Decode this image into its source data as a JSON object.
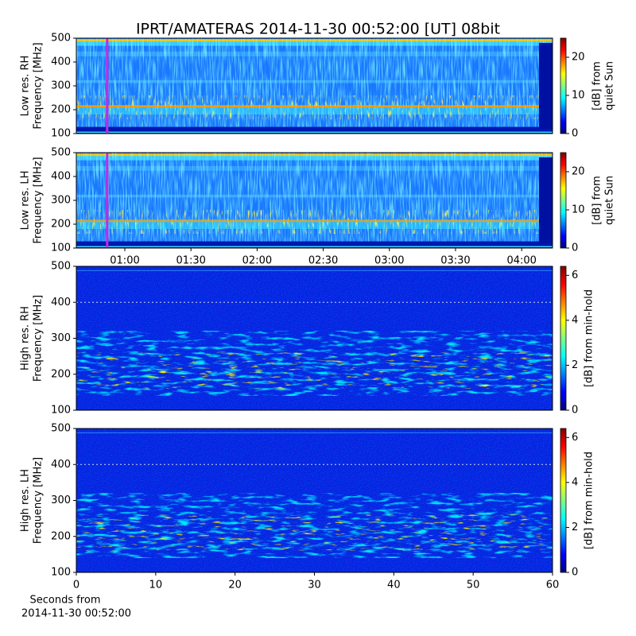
{
  "chart_data": [
    {
      "type": "heatmap",
      "title": "IPRT/AMATERAS 2014-11-30 00:52:00 [UT]   08bit",
      "y_label": [
        "Low res. RH",
        "Frequency [MHz]"
      ],
      "ylim": [
        100,
        500
      ],
      "yticks": [
        100,
        200,
        300,
        400,
        500
      ],
      "xlim": [
        38,
        254
      ],
      "marker_x": 52,
      "marker_color": "#c828e0",
      "colorbar": {
        "label": [
          "[dB] from",
          "quiet Sun"
        ],
        "lim": [
          0,
          25
        ],
        "ticks": [
          0,
          10,
          20
        ],
        "cmap": "jet"
      },
      "style": "low"
    },
    {
      "type": "heatmap",
      "y_label": [
        "Low res. LH",
        "Frequency [MHz]"
      ],
      "ylim": [
        100,
        500
      ],
      "yticks": [
        100,
        200,
        300,
        400,
        500
      ],
      "xlim": [
        38,
        254
      ],
      "xticks": [
        {
          "value": 60,
          "label": "01:00"
        },
        {
          "value": 90,
          "label": "01:30"
        },
        {
          "value": 120,
          "label": "02:00"
        },
        {
          "value": 150,
          "label": "02:30"
        },
        {
          "value": 180,
          "label": "03:00"
        },
        {
          "value": 210,
          "label": "03:30"
        },
        {
          "value": 240,
          "label": "04:00"
        }
      ],
      "marker_x": 52,
      "marker_color": "#c828e0",
      "colorbar": {
        "label": [
          "[dB] from",
          "quiet Sun"
        ],
        "lim": [
          0,
          25
        ],
        "ticks": [
          0,
          10,
          20
        ],
        "cmap": "jet"
      },
      "style": "low"
    },
    {
      "type": "heatmap",
      "y_label": [
        "High res. RH",
        "Frequency [MHz]"
      ],
      "ylim": [
        100,
        500
      ],
      "yticks": [
        100,
        200,
        300,
        400,
        500
      ],
      "xlim": [
        0,
        60
      ],
      "colorbar": {
        "label": [
          "[dB] from min-hold"
        ],
        "lim": [
          0,
          6.4
        ],
        "ticks": [
          0,
          2,
          4,
          6
        ],
        "cmap": "jet"
      },
      "style": "high"
    },
    {
      "type": "heatmap",
      "y_label": [
        "High res. LH",
        "Frequency [MHz]"
      ],
      "ylim": [
        100,
        500
      ],
      "yticks": [
        100,
        200,
        300,
        400,
        500
      ],
      "xlim": [
        0,
        60
      ],
      "xticks": [
        0,
        10,
        20,
        30,
        40,
        50,
        60
      ],
      "x_label": [
        "Seconds from",
        "2014-11-30 00:52:00"
      ],
      "colorbar": {
        "label": [
          "[dB] from min-hold"
        ],
        "lim": [
          0,
          6.4
        ],
        "ticks": [
          0,
          2,
          4,
          6
        ],
        "cmap": "jet"
      },
      "style": "high"
    }
  ]
}
